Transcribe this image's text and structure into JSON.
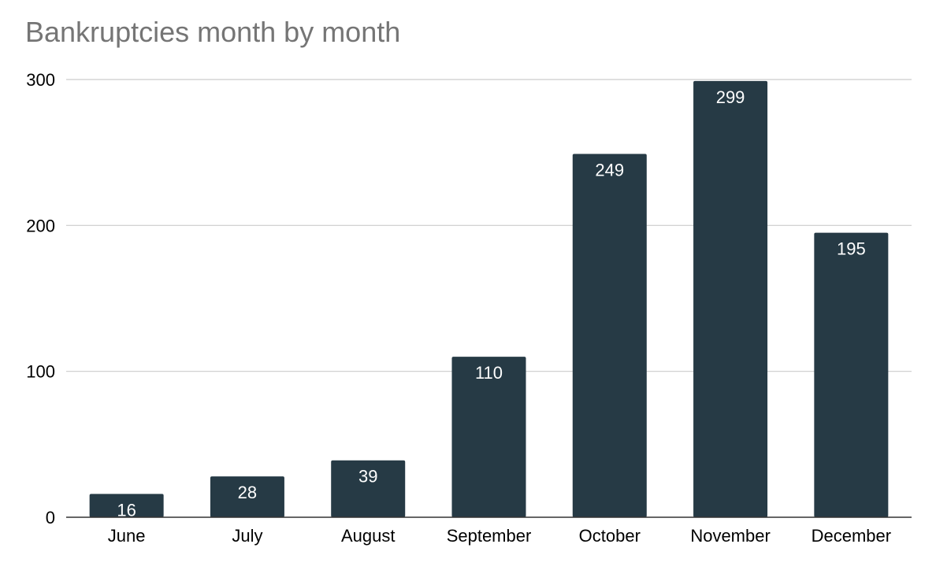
{
  "chart_data": {
    "type": "bar",
    "title": "Bankruptcies month by month",
    "categories": [
      "June",
      "July",
      "August",
      "September",
      "October",
      "November",
      "December"
    ],
    "values": [
      16,
      28,
      39,
      110,
      249,
      299,
      195
    ],
    "data_labels": [
      "16",
      "28",
      "39",
      "110",
      "249",
      "299",
      "195"
    ],
    "ylim": [
      0,
      300
    ],
    "yticks": [
      "0",
      "100",
      "200",
      "300"
    ],
    "xlabel": "",
    "ylabel": "",
    "grid": true,
    "legend": "none",
    "colors": {
      "bar": "#263a45",
      "gridline": "#cccccc",
      "axis": "#333333",
      "title": "#757575",
      "data_label": "#ffffff"
    }
  }
}
